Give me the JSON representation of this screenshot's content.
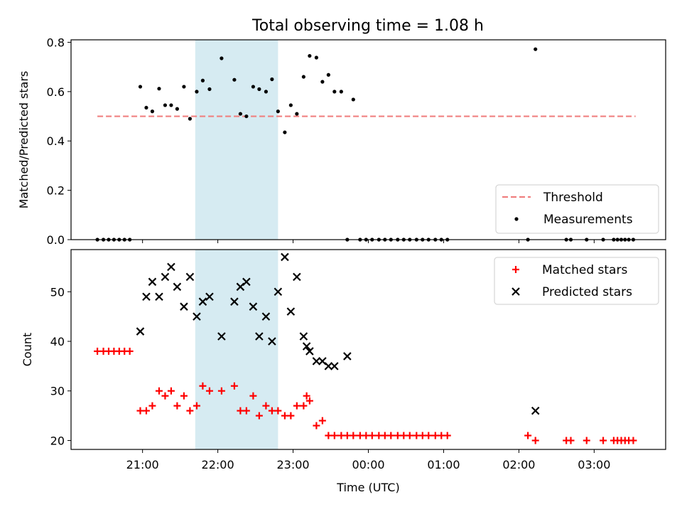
{
  "figure_title": "Total observing time = 1.08 h",
  "chart_data": [
    {
      "type": "scatter",
      "xlabel": "",
      "ylabel": "Matched/Predicted stars",
      "ylim": [
        0,
        0.81
      ],
      "yticks": [
        "0.0",
        "0.2",
        "0.4",
        "0.6",
        "0.8"
      ],
      "ytick_values": [
        0,
        0.2,
        0.4,
        0.6,
        0.8
      ],
      "xlim_hours": [
        20.05,
        27.95
      ],
      "shaded_interval_hours": [
        21.7,
        22.8
      ],
      "shade_color": "#add8e6",
      "legend_position": "lower-right",
      "threshold": {
        "name": "Threshold",
        "value": 0.5,
        "x_range_hours": [
          20.4,
          27.55
        ],
        "color": "#f08080"
      },
      "measurements": {
        "name": "Measurements",
        "color": "#000000",
        "x_hours": [
          20.4,
          20.48,
          20.55,
          20.62,
          20.69,
          20.76,
          20.83,
          20.97,
          21.05,
          21.13,
          21.22,
          21.3,
          21.38,
          21.46,
          21.55,
          21.63,
          21.72,
          21.8,
          21.89,
          22.05,
          22.22,
          22.3,
          22.38,
          22.47,
          22.55,
          22.64,
          22.72,
          22.8,
          22.89,
          22.97,
          23.05,
          23.14,
          23.22,
          23.31,
          23.39,
          23.47,
          23.55,
          23.64,
          23.72,
          23.8,
          23.89,
          23.97,
          24.05,
          24.14,
          24.22,
          24.3,
          24.39,
          24.47,
          24.55,
          24.64,
          24.72,
          24.8,
          24.89,
          24.97,
          25.05,
          26.12,
          26.22,
          26.63,
          26.69,
          26.9,
          27.12,
          27.26,
          27.31,
          27.36,
          27.41,
          27.46,
          27.52
        ],
        "y": [
          0,
          0,
          0,
          0,
          0,
          0,
          0,
          0.62,
          0.535,
          0.52,
          0.612,
          0.545,
          0.545,
          0.53,
          0.62,
          0.49,
          0.6,
          0.645,
          0.61,
          0.735,
          0.648,
          0.51,
          0.5,
          0.62,
          0.61,
          0.6,
          0.65,
          0.52,
          0.435,
          0.545,
          0.51,
          0.66,
          0.745,
          0.738,
          0.64,
          0.668,
          0.6,
          0.6,
          0,
          0.568,
          0,
          0,
          0,
          0,
          0,
          0,
          0,
          0,
          0,
          0,
          0,
          0,
          0,
          0,
          0,
          0,
          0.772,
          0,
          0,
          0,
          0,
          0,
          0,
          0,
          0,
          0,
          0
        ]
      }
    },
    {
      "type": "scatter",
      "xlabel": "Time (UTC)",
      "ylabel": "Count",
      "ylim": [
        18.2,
        58.5
      ],
      "yticks": [
        "20",
        "30",
        "40",
        "50"
      ],
      "ytick_values": [
        20,
        30,
        40,
        50
      ],
      "xlim_hours": [
        20.05,
        27.95
      ],
      "xticks": [
        "21:00",
        "22:00",
        "23:00",
        "00:00",
        "01:00",
        "02:00",
        "03:00"
      ],
      "xtick_hours": [
        21,
        22,
        23,
        24,
        25,
        26,
        27
      ],
      "shaded_interval_hours": [
        21.7,
        22.8
      ],
      "legend_position": "upper-right",
      "series": [
        {
          "name": "Matched stars",
          "marker": "plus",
          "color": "#ff0000",
          "x_hours": [
            20.4,
            20.48,
            20.55,
            20.62,
            20.69,
            20.76,
            20.83,
            20.97,
            21.05,
            21.13,
            21.22,
            21.3,
            21.38,
            21.46,
            21.55,
            21.63,
            21.72,
            21.8,
            21.89,
            22.05,
            22.22,
            22.3,
            22.38,
            22.47,
            22.55,
            22.64,
            22.72,
            22.8,
            22.89,
            22.97,
            23.05,
            23.14,
            23.18,
            23.22,
            23.31,
            23.39,
            23.47,
            23.55,
            23.64,
            23.72,
            23.8,
            23.89,
            23.97,
            24.05,
            24.14,
            24.22,
            24.3,
            24.39,
            24.47,
            24.55,
            24.64,
            24.72,
            24.8,
            24.89,
            24.97,
            25.05,
            26.12,
            26.22,
            26.63,
            26.69,
            26.9,
            27.12,
            27.26,
            27.31,
            27.36,
            27.41,
            27.46,
            27.52
          ],
          "values": [
            38,
            38,
            38,
            38,
            38,
            38,
            38,
            26,
            26,
            27,
            30,
            29,
            30,
            27,
            29,
            26,
            27,
            31,
            30,
            30,
            31,
            26,
            26,
            29,
            25,
            27,
            26,
            26,
            25,
            25,
            27,
            27,
            29,
            28,
            23,
            24,
            21,
            21,
            21,
            21,
            21,
            21,
            21,
            21,
            21,
            21,
            21,
            21,
            21,
            21,
            21,
            21,
            21,
            21,
            21,
            21,
            21,
            20,
            20,
            20,
            20,
            20,
            20,
            20,
            20,
            20,
            20,
            20
          ]
        },
        {
          "name": "Predicted stars",
          "marker": "x",
          "color": "#000000",
          "x_hours": [
            20.97,
            21.05,
            21.13,
            21.22,
            21.3,
            21.38,
            21.46,
            21.55,
            21.63,
            21.72,
            21.8,
            21.89,
            22.05,
            22.22,
            22.3,
            22.38,
            22.47,
            22.55,
            22.64,
            22.72,
            22.8,
            22.89,
            22.97,
            23.05,
            23.14,
            23.18,
            23.22,
            23.31,
            23.39,
            23.47,
            23.55,
            23.72,
            26.22
          ],
          "values": [
            42,
            49,
            52,
            49,
            53,
            55,
            51,
            47,
            53,
            45,
            48,
            49,
            41,
            48,
            51,
            52,
            47,
            41,
            45,
            40,
            50,
            57,
            46,
            53,
            41,
            39,
            38,
            36,
            36,
            35,
            35,
            37,
            26
          ]
        }
      ]
    }
  ]
}
